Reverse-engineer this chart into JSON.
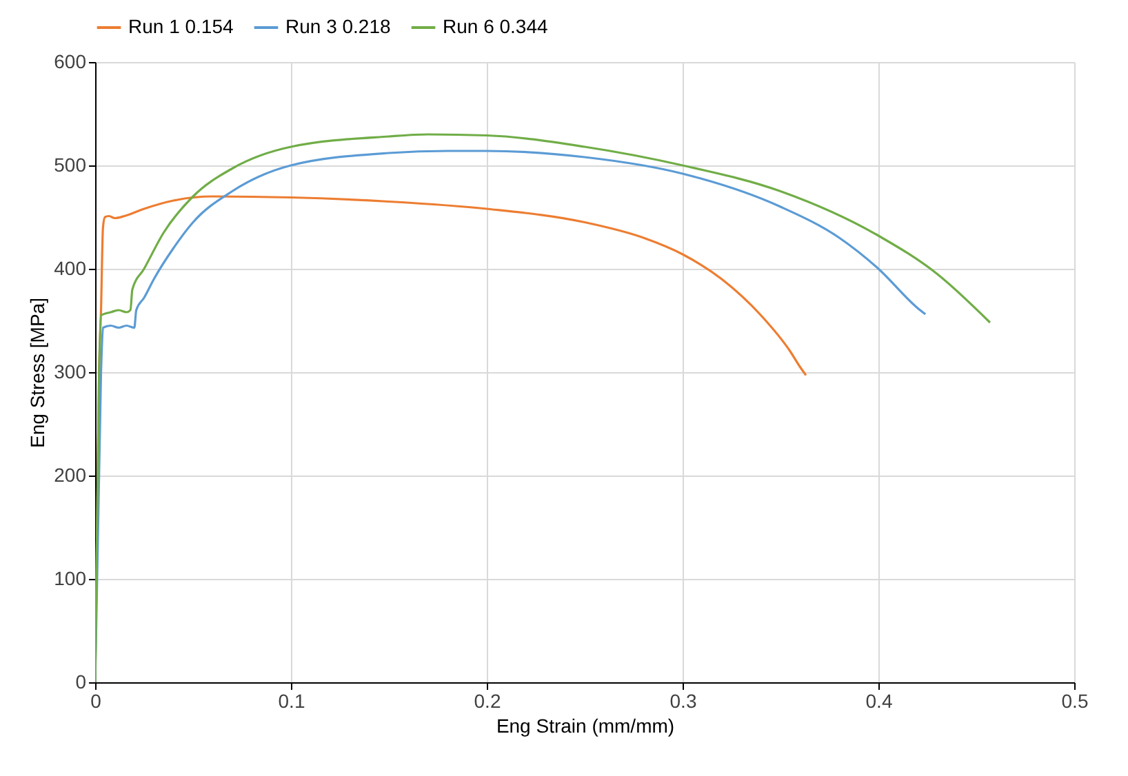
{
  "chart_data": {
    "type": "line",
    "xlabel": "Eng Strain (mm/mm)",
    "ylabel": "Eng Stress [MPa]",
    "xlim": [
      0,
      0.5
    ],
    "xticks": [
      0,
      0.1,
      0.2,
      0.3,
      0.4,
      0.5
    ],
    "ylim": [
      0,
      600
    ],
    "yticks": [
      0,
      100,
      200,
      300,
      400,
      500,
      600
    ],
    "grid": true,
    "legend": "top",
    "marker": "none",
    "series": [
      {
        "name": "Run 1 0.154",
        "color": "#ed7d31",
        "x": [
          0,
          0.002,
          0.003,
          0.004,
          0.005,
          0.007,
          0.01,
          0.015,
          0.025,
          0.04,
          0.06,
          0.1,
          0.15,
          0.2,
          0.25,
          0.28,
          0.3,
          0.32,
          0.34,
          0.355,
          0.36,
          0.363
        ],
        "values": [
          0,
          300,
          360,
          440,
          450,
          451,
          449,
          451,
          458,
          466,
          470,
          469,
          465,
          458,
          445,
          430,
          414,
          390,
          355,
          320,
          305,
          297
        ]
      },
      {
        "name": "Run 3 0.218",
        "color": "#5b9bd5",
        "x": [
          0,
          0.003,
          0.004,
          0.008,
          0.012,
          0.016,
          0.02,
          0.021,
          0.025,
          0.03,
          0.04,
          0.05,
          0.07,
          0.1,
          0.15,
          0.18,
          0.2,
          0.25,
          0.3,
          0.35,
          0.38,
          0.4,
          0.42,
          0.424
        ],
        "values": [
          0,
          300,
          343,
          345,
          343,
          345,
          343,
          360,
          372,
          390,
          420,
          445,
          475,
          500,
          512,
          514,
          514,
          508,
          492,
          460,
          430,
          400,
          362,
          356
        ]
      },
      {
        "name": "Run 6 0.344",
        "color": "#70ad47",
        "x": [
          0,
          0.002,
          0.003,
          0.008,
          0.012,
          0.016,
          0.018,
          0.019,
          0.025,
          0.035,
          0.05,
          0.07,
          0.1,
          0.15,
          0.17,
          0.2,
          0.25,
          0.3,
          0.35,
          0.4,
          0.43,
          0.457
        ],
        "values": [
          0,
          300,
          355,
          358,
          360,
          358,
          360,
          380,
          400,
          435,
          470,
          497,
          518,
          528,
          530,
          529,
          518,
          500,
          475,
          432,
          395,
          348
        ]
      }
    ]
  }
}
